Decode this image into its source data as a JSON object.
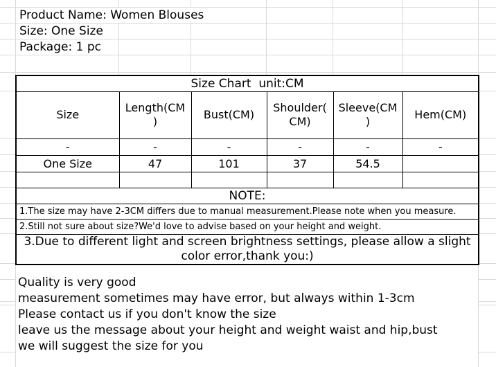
{
  "colors": {
    "background": "#ffffff",
    "grid_line": "#d9d9d9",
    "table_border": "#000000",
    "text": "#000000"
  },
  "product_info": {
    "lines": [
      "Product Name: Women Blouses",
      "Size: One Size",
      "Package: 1 pc"
    ]
  },
  "size_chart": {
    "title": "Size Chart  unit:CM",
    "columns": [
      "Size",
      "Length(CM\n)",
      "Bust(CM)",
      "Shoulder(\nCM)",
      "Sleeve(CM\n)",
      "Hem(CM)"
    ],
    "rows": [
      [
        "-",
        "-",
        "-",
        "-",
        "-",
        "-"
      ],
      [
        "One Size",
        "47",
        "101",
        "37",
        "54.5",
        ""
      ]
    ],
    "note_title": "NOTE:",
    "notes": [
      "1.The size may have 2-3CM differs due to manual measurement.Please note when you measure.",
      "2.Still not sure about size?We'd love to advise based on your height and weight.",
      "3.Due to different light and screen brightness settings, please allow a slight\ncolor error,thank you:)"
    ]
  },
  "footer_notes": {
    "lines": [
      "Quality is very good",
      "measurement sometimes may have error, but always within 1-3cm",
      "Please contact us if you don't know the size",
      "leave us the message about your height and weight waist and hip,bust",
      "we will suggest the size for you"
    ]
  }
}
